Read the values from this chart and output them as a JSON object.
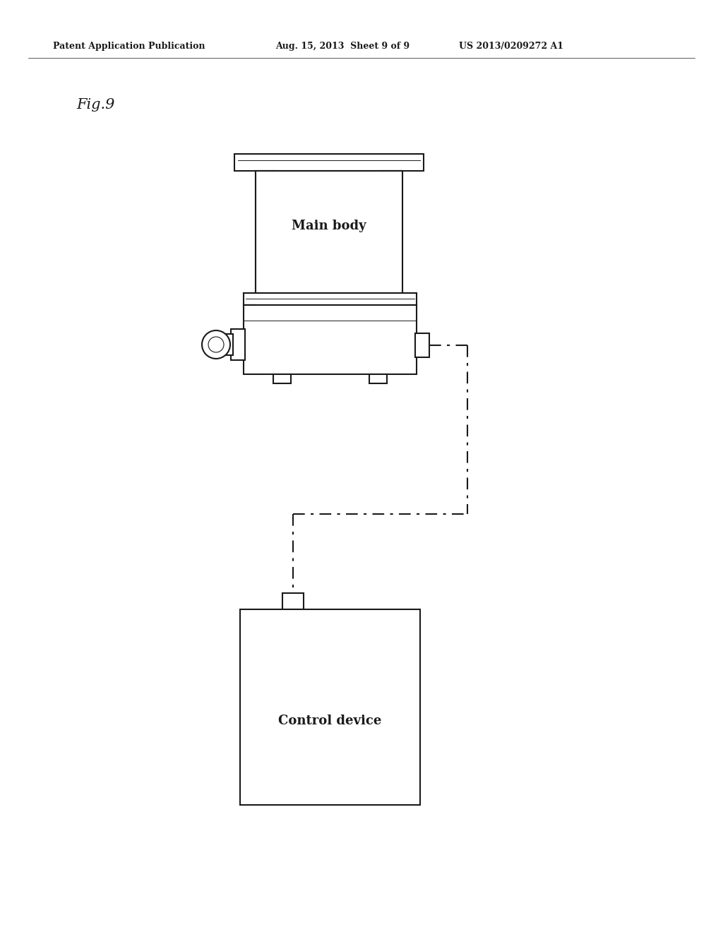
{
  "background_color": "#ffffff",
  "header_left": "Patent Application Publication",
  "header_mid": "Aug. 15, 2013  Sheet 9 of 9",
  "header_right": "US 2013/0209272 A1",
  "fig_label": "Fig.9",
  "main_body_label": "Main body",
  "control_device_label": "Control device",
  "line_color": "#1a1a1a",
  "lw": 1.5
}
